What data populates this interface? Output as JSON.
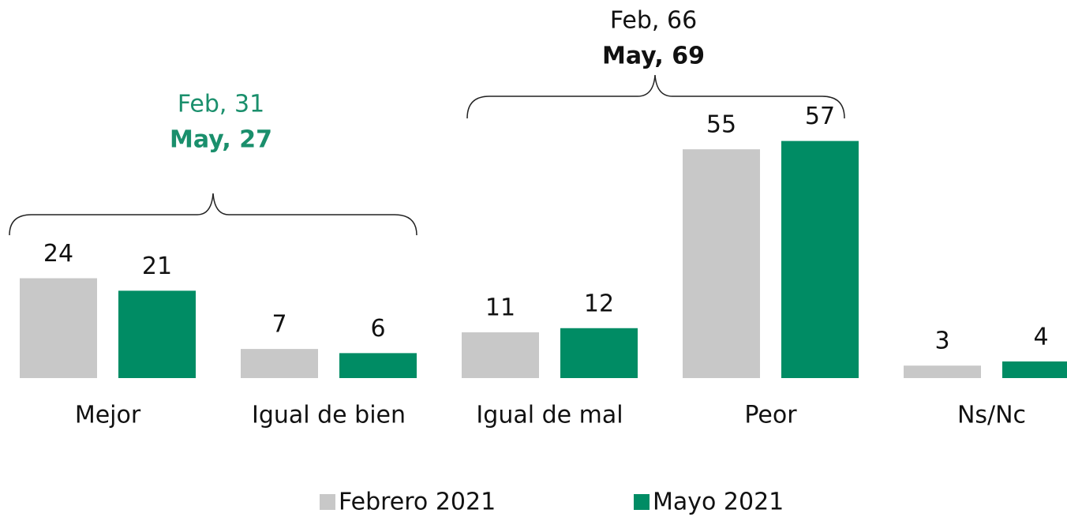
{
  "chart_data": {
    "type": "bar",
    "categories": [
      "Mejor",
      "Igual de bien",
      "Igual de mal",
      "Peor",
      "Ns/Nc"
    ],
    "series": [
      {
        "name": "Febrero 2021",
        "color": "#c8c8c8",
        "values": [
          24,
          7,
          11,
          55,
          3
        ]
      },
      {
        "name": "Mayo 2021",
        "color": "#008c64",
        "values": [
          21,
          6,
          12,
          57,
          4
        ]
      }
    ],
    "legend": "bottom",
    "annotations": [
      {
        "lines": [
          "Feb, 31",
          "May, 27"
        ],
        "color": "#1a8f6c"
      },
      {
        "lines": [
          "Feb, 66",
          "May, 69"
        ],
        "color": "#111111"
      }
    ]
  }
}
